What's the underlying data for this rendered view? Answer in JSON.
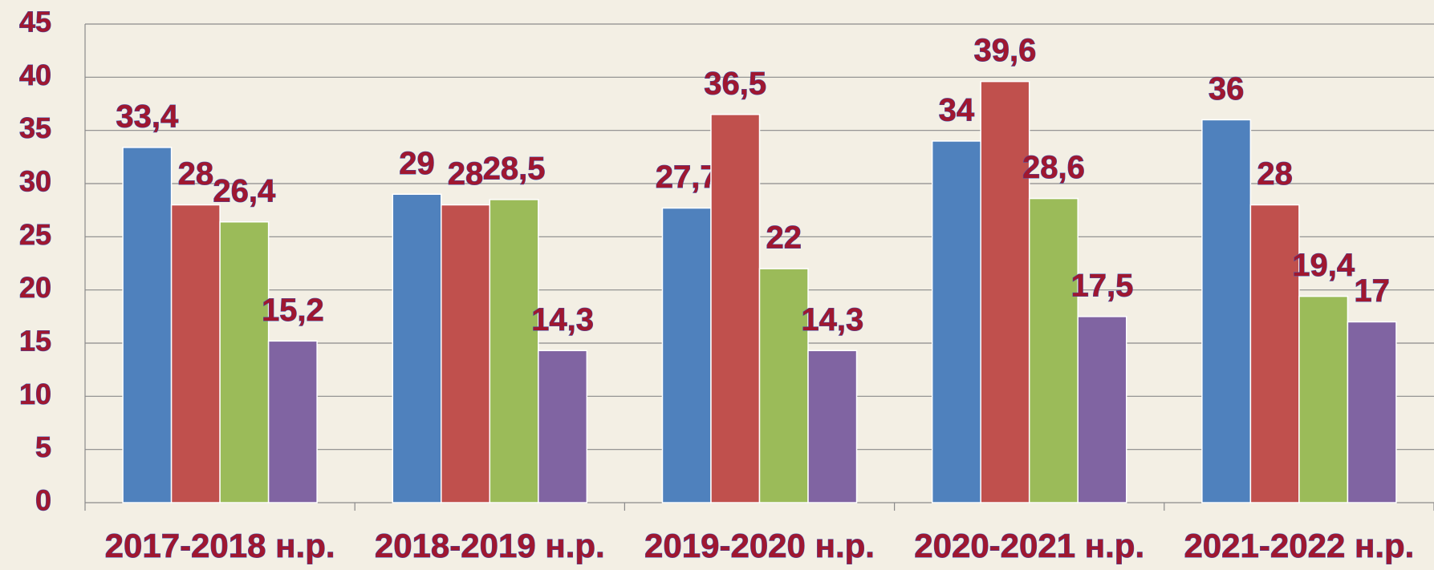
{
  "chart_data": {
    "type": "bar",
    "categories": [
      "2017-2018 н.р.",
      "2018-2019 н.р.",
      "2019-2020 н.р.",
      "2020-2021 н.р.",
      "2021-2022 н.р."
    ],
    "series": [
      {
        "color": "#4f81bd",
        "values": [
          33.4,
          29,
          27.7,
          34,
          36
        ],
        "value_labels": [
          "33,4",
          "29",
          "27,7",
          "34",
          "36"
        ]
      },
      {
        "color": "#c0504d",
        "values": [
          28,
          28,
          36.5,
          39.6,
          28
        ],
        "value_labels": [
          "28",
          "28",
          "36,5",
          "39,6",
          "28"
        ]
      },
      {
        "color": "#9bbb59",
        "values": [
          26.4,
          28.5,
          22,
          28.6,
          19.4
        ],
        "value_labels": [
          "26,4",
          "28,5",
          "22",
          "28,6",
          "19,4"
        ]
      },
      {
        "color": "#8064a2",
        "values": [
          15.2,
          14.3,
          14.3,
          17.5,
          17
        ],
        "value_labels": [
          "15,2",
          "14,3",
          "14,3",
          "17,5",
          "17"
        ]
      }
    ],
    "ylim": [
      0,
      45
    ],
    "yticks": [
      0,
      5,
      10,
      15,
      20,
      25,
      30,
      35,
      40,
      45
    ],
    "grid": true
  }
}
